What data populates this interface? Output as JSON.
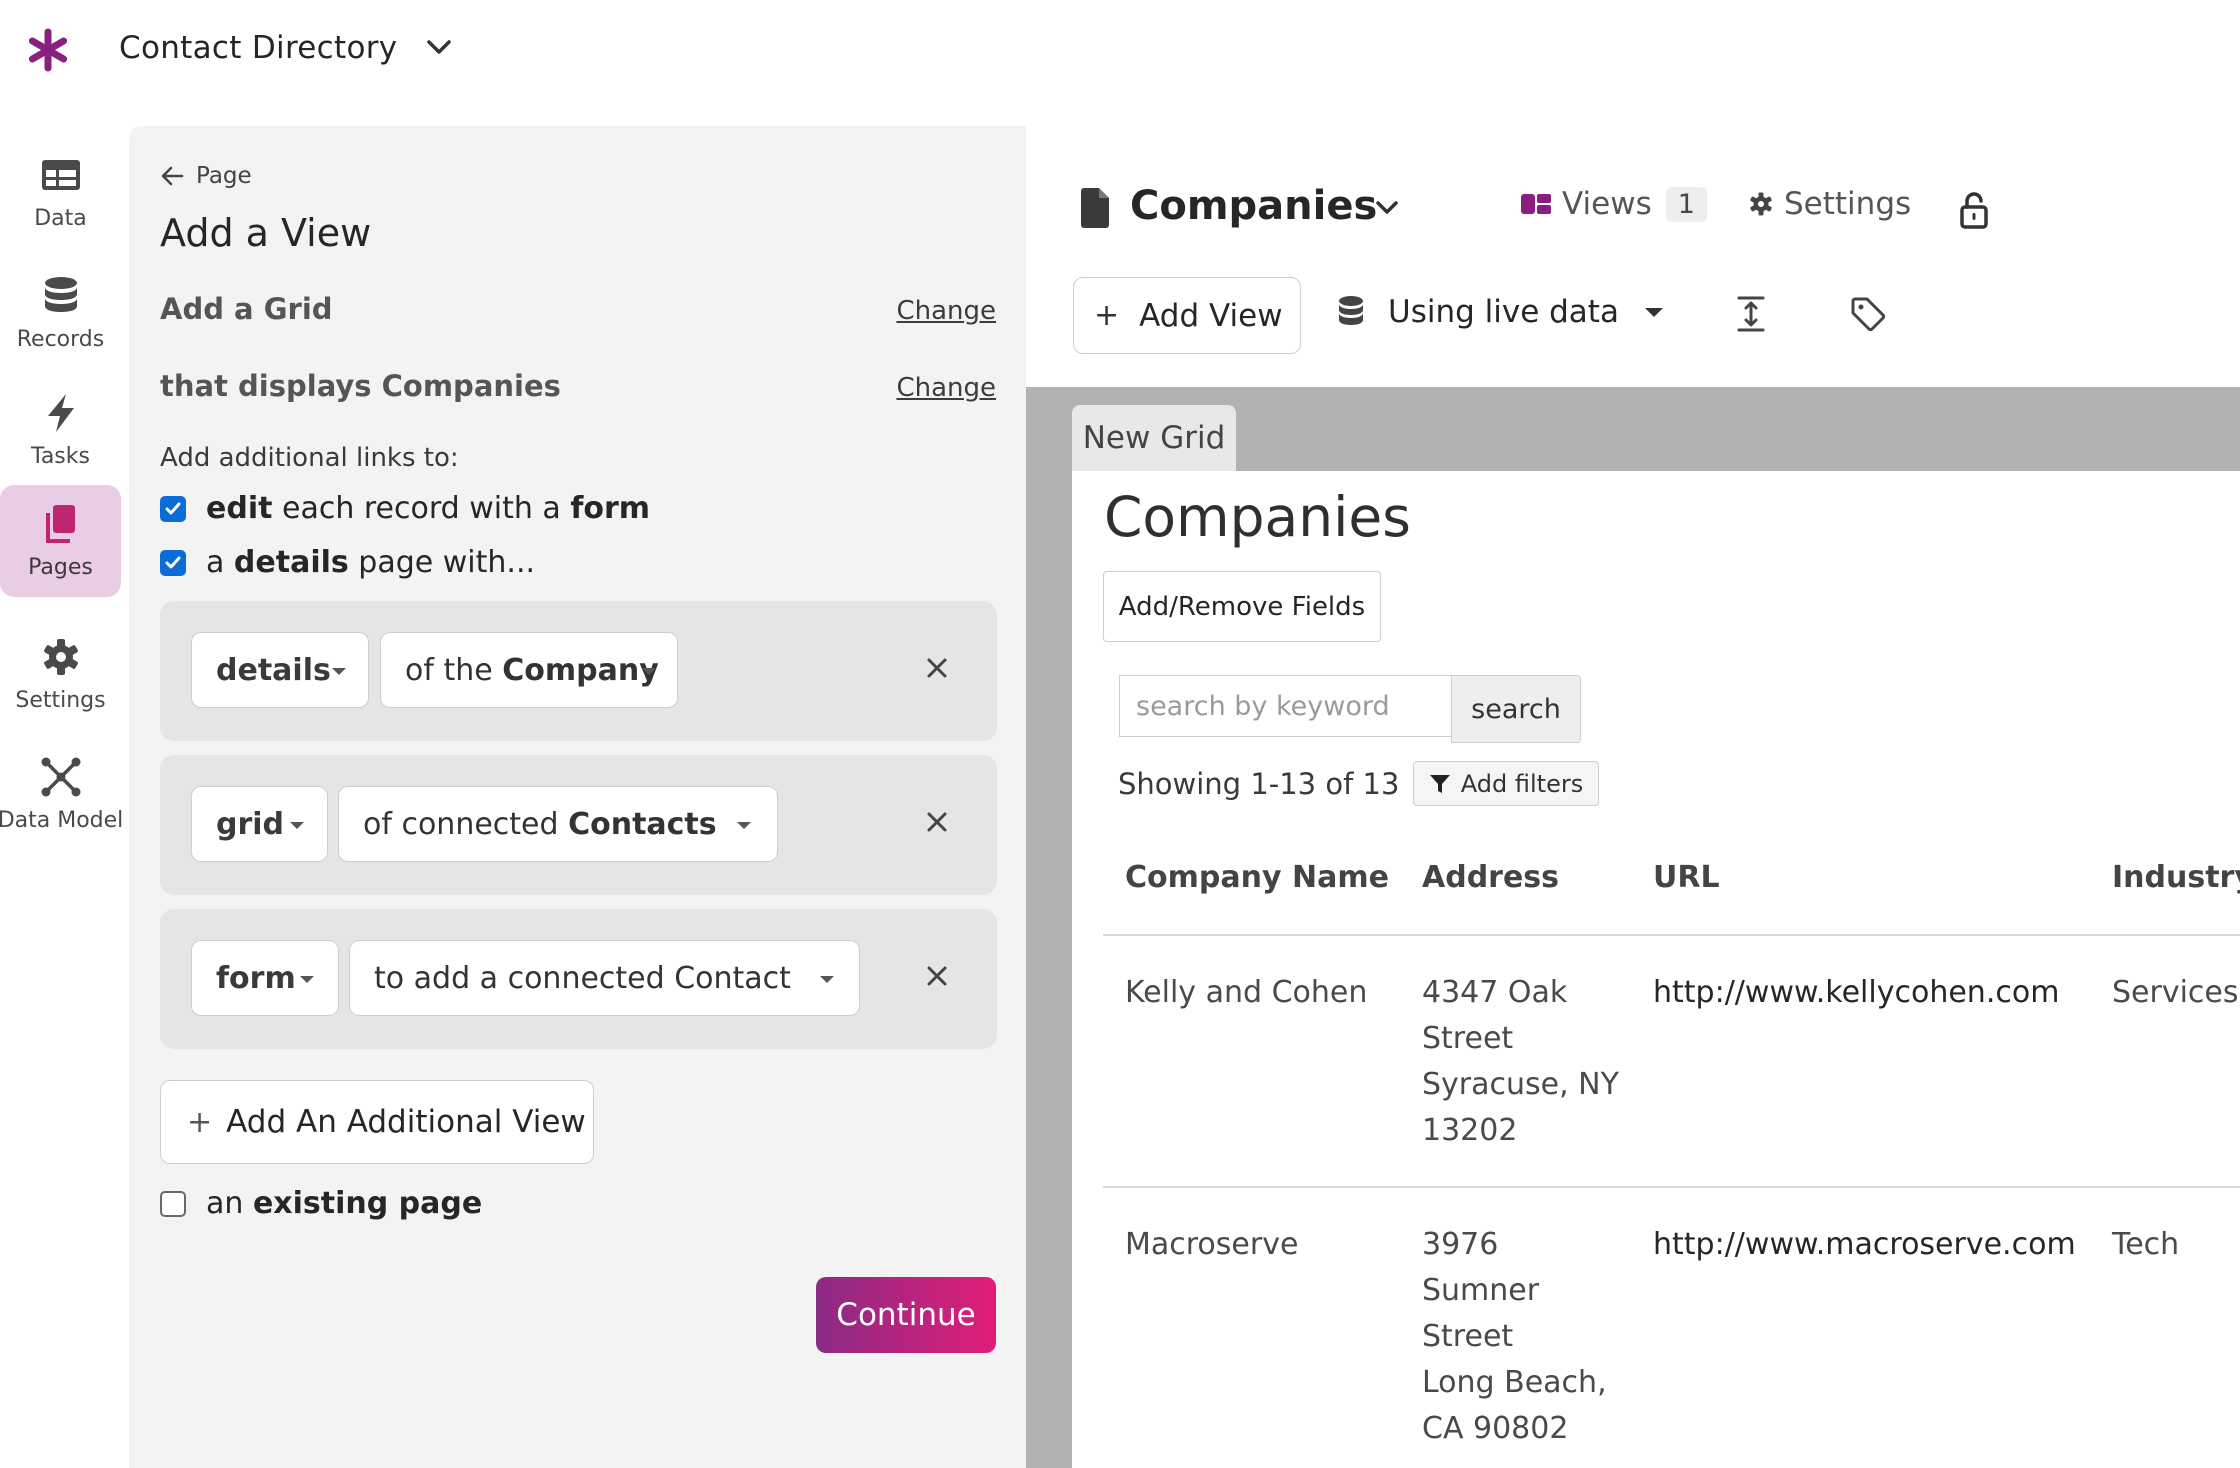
{
  "app": {
    "title": "Contact Directory"
  },
  "nav": [
    {
      "label": "Data",
      "icon": "table-icon"
    },
    {
      "label": "Records",
      "icon": "database-icon"
    },
    {
      "label": "Tasks",
      "icon": "lightning-icon"
    },
    {
      "label": "Pages",
      "icon": "pages-icon",
      "active": true
    },
    {
      "label": "Settings",
      "icon": "gear-icon"
    },
    {
      "label": "Data Model",
      "icon": "network-icon"
    }
  ],
  "wizard": {
    "back_label": "Page",
    "title": "Add a View",
    "step1": "Add a Grid",
    "step2": "that displays Companies",
    "change_label": "Change",
    "links_label": "Add additional links to:",
    "link_edit": {
      "pre": "edit",
      "mid": " each record with a ",
      "post": "form",
      "checked": true
    },
    "link_details": {
      "pre": "a ",
      "mid": "details",
      "post": " page with...",
      "checked": true
    },
    "views": [
      {
        "type": "details",
        "prefix": "of the ",
        "target": "Company"
      },
      {
        "type": "grid",
        "prefix": "of connected ",
        "target": "Contacts"
      },
      {
        "type": "form",
        "prefix": "to add a connected ",
        "target": "Contact"
      }
    ],
    "add_additional": "Add An Additional View",
    "existing": {
      "pre": "an ",
      "bold": "existing page",
      "checked": false
    },
    "continue": "Continue"
  },
  "builder": {
    "page_name": "Companies",
    "views_label": "Views",
    "views_count": "1",
    "settings_label": "Settings",
    "add_view": "Add View",
    "live_data": "Using live data",
    "grid_tab": "New Grid",
    "grid_title": "Companies",
    "add_remove": "Add/Remove Fields",
    "search_placeholder": "search by keyword",
    "search_button": "search",
    "showing": "Showing 1-13 of 13",
    "add_filters": "Add filters",
    "columns": [
      "Company Name",
      "Address",
      "URL",
      "Industry"
    ],
    "rows": [
      {
        "name": "Kelly and Cohen",
        "address": [
          "4347 Oak",
          "Street",
          "Syracuse, NY",
          "13202"
        ],
        "url": "http://www.kellycohen.com",
        "industry": "Services"
      },
      {
        "name": "Macroserve",
        "address": [
          "3976",
          "Sumner",
          "Street",
          "Long Beach,",
          "CA 90802"
        ],
        "url": "http://www.macroserve.com",
        "industry": "Tech"
      }
    ]
  },
  "colors": {
    "brand": "#8b1f80",
    "accent_gradient_start": "#8b2a84",
    "accent_gradient_end": "#e01e78",
    "checkbox": "#0a6cd6",
    "nav_active": "#e9cde4"
  }
}
